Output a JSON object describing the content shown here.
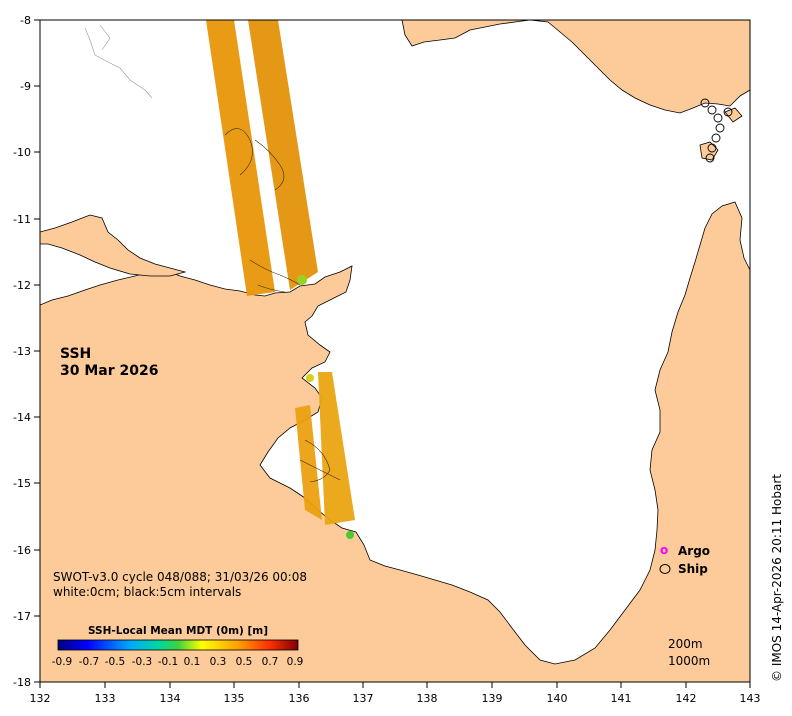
{
  "map": {
    "lon_ticks": [
      "132",
      "133",
      "134",
      "135",
      "136",
      "137",
      "138",
      "139",
      "140",
      "141",
      "142",
      "143"
    ],
    "lat_ticks": [
      "-8",
      "-9",
      "-10",
      "-11",
      "-12",
      "-13",
      "-14",
      "-15",
      "-16",
      "-17",
      "-18"
    ],
    "variable_label": "SSH",
    "date_label": "30 Mar 2026",
    "info_line1": "SWOT-v3.0 cycle 048/088; 31/03/26 00:08",
    "info_line2": "white:0cm; black:5cm intervals",
    "colorbar": {
      "title": "SSH-Local Mean MDT (0m) [m]",
      "ticks": [
        "-0.9",
        "-0.7",
        "-0.5",
        "-0.3",
        "-0.1",
        "0.1",
        "0.3",
        "0.5",
        "0.7",
        "0.9"
      ],
      "range": [
        -0.9,
        0.9
      ]
    },
    "legend": {
      "argo_symbol": "o",
      "argo_label": "Argo",
      "ship_label": "Ship",
      "argo_color": "#ff00ff",
      "ship_color": "#000000"
    },
    "depth_labels": [
      "200m",
      "1000m"
    ],
    "credit": "© IMOS 14-Apr-2026 20:11 Hobart",
    "colors": {
      "land": "#fccb99",
      "ocean": "#ffffff",
      "swath": "#e8960a"
    }
  }
}
